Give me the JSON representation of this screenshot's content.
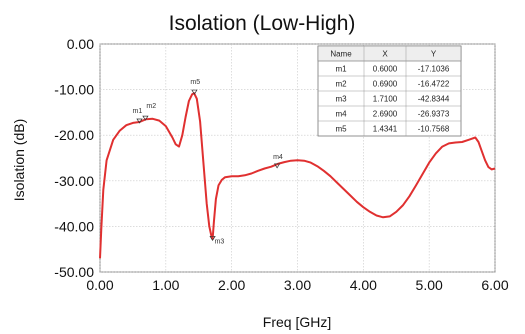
{
  "chart_data": {
    "type": "line",
    "title": "Isolation (Low-High)",
    "xlabel": "Freq [GHz]",
    "ylabel": "Isolation (dB)",
    "xlim": [
      0,
      6
    ],
    "ylim": [
      -50,
      0
    ],
    "x_ticks": [
      "0.00",
      "1.00",
      "2.00",
      "3.00",
      "4.00",
      "5.00",
      "6.00"
    ],
    "y_ticks": [
      "0.00",
      "-10.00",
      "-20.00",
      "-30.00",
      "-40.00",
      "-50.00"
    ],
    "grid": true,
    "series": [
      {
        "color": "#e03030",
        "x": [
          0.0,
          0.02,
          0.05,
          0.1,
          0.2,
          0.3,
          0.4,
          0.5,
          0.6,
          0.7,
          0.8,
          0.9,
          1.0,
          1.1,
          1.15,
          1.2,
          1.25,
          1.3,
          1.35,
          1.4,
          1.43,
          1.47,
          1.52,
          1.57,
          1.62,
          1.66,
          1.69,
          1.71,
          1.73,
          1.76,
          1.8,
          1.85,
          1.9,
          2.0,
          2.1,
          2.2,
          2.3,
          2.4,
          2.5,
          2.6,
          2.7,
          2.8,
          2.9,
          3.0,
          3.1,
          3.2,
          3.3,
          3.4,
          3.5,
          3.6,
          3.7,
          3.8,
          3.9,
          4.0,
          4.1,
          4.2,
          4.3,
          4.4,
          4.5,
          4.6,
          4.7,
          4.8,
          4.9,
          5.0,
          5.1,
          5.2,
          5.3,
          5.4,
          5.5,
          5.6,
          5.7,
          5.75,
          5.8,
          5.85,
          5.9,
          5.95,
          6.0
        ],
        "y": [
          -47.0,
          -40.5,
          -32.0,
          -25.5,
          -21.0,
          -19.0,
          -17.8,
          -17.3,
          -17.1,
          -16.5,
          -16.4,
          -16.8,
          -18.0,
          -20.5,
          -22.0,
          -22.5,
          -20.0,
          -16.0,
          -12.5,
          -11.0,
          -10.8,
          -12.0,
          -17.0,
          -26.0,
          -35.0,
          -40.0,
          -42.0,
          -42.8,
          -39.0,
          -34.0,
          -31.0,
          -29.8,
          -29.2,
          -29.0,
          -29.0,
          -28.8,
          -28.4,
          -27.8,
          -27.3,
          -26.9,
          -26.3,
          -25.9,
          -25.6,
          -25.5,
          -25.6,
          -26.0,
          -26.8,
          -27.8,
          -29.0,
          -30.4,
          -31.8,
          -33.2,
          -34.6,
          -35.8,
          -36.8,
          -37.6,
          -38.0,
          -37.8,
          -36.8,
          -35.4,
          -33.4,
          -31.0,
          -28.5,
          -26.0,
          -24.0,
          -22.5,
          -21.8,
          -21.6,
          -21.5,
          -21.0,
          -20.5,
          -21.5,
          -23.5,
          -25.5,
          -27.0,
          -27.5,
          -27.3
        ]
      }
    ],
    "markers": [
      {
        "name": "m1",
        "x": 0.6,
        "y": -17.1036
      },
      {
        "name": "m2",
        "x": 0.69,
        "y": -16.4722
      },
      {
        "name": "m3",
        "x": 1.71,
        "y": -42.8344
      },
      {
        "name": "m4",
        "x": 2.69,
        "y": -26.9373
      },
      {
        "name": "m5",
        "x": 1.4341,
        "y": -10.7568
      }
    ],
    "marker_table": {
      "headers": [
        "Name",
        "X",
        "Y"
      ],
      "rows": [
        [
          "m1",
          "0.6000",
          "-17.1036"
        ],
        [
          "m2",
          "0.6900",
          "-16.4722"
        ],
        [
          "m3",
          "1.7100",
          "-42.8344"
        ],
        [
          "m4",
          "2.6900",
          "-26.9373"
        ],
        [
          "m5",
          "1.4341",
          "-10.7568"
        ]
      ]
    }
  }
}
